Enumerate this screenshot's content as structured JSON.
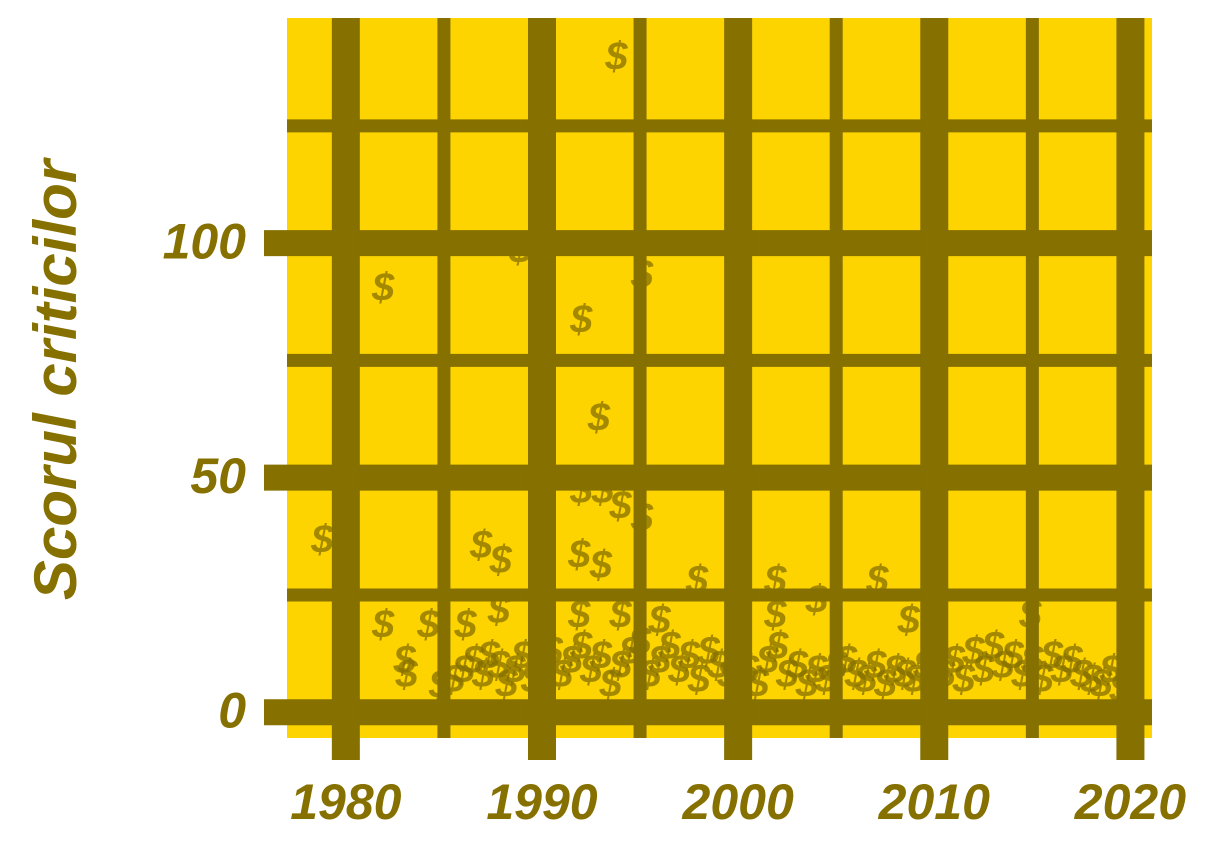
{
  "chart_data": {
    "type": "scatter",
    "y_label": "Scorul criticilor",
    "marker": "$",
    "color": "#857000",
    "background": "#fdd400",
    "grid": true,
    "xlim": [
      1977,
      2021.1
    ],
    "ylim": [
      -5.5,
      148
    ],
    "xticks": [
      1980,
      1990,
      2000,
      2010,
      2020
    ],
    "yticks": [
      0,
      50,
      100
    ],
    "xminor": [
      1985,
      1995,
      2005,
      2015
    ],
    "yminor": [
      25,
      75,
      125
    ],
    "series": [
      {
        "name": null,
        "color": "#857000",
        "x": [
          1978.8,
          1981.9,
          1988.9,
          1993.8,
          1995.1,
          1992.0,
          1992.9,
          1992.0,
          1993.1,
          1994.0,
          1995.1,
          1986.9,
          1987.9,
          1991.9,
          1993.0,
          1997.9,
          2001.9,
          2004.0,
          2007.1,
          1981.9,
          1984.2,
          1986.1,
          1987.8,
          1991.9,
          1994.0,
          1996.0,
          2001.9,
          2008.7,
          2014.9,
          1983.0,
          1983.1,
          1984.8,
          1985.5,
          1986.0,
          1986.5,
          1987.0,
          1987.3,
          1987.8,
          1988.2,
          1988.6,
          1989.0,
          1989.5,
          1990.0,
          1990.5,
          1991.0,
          1991.5,
          1992.0,
          1992.5,
          1993.0,
          1993.5,
          1994.0,
          1994.5,
          1995.0,
          1995.5,
          1996.0,
          1996.5,
          1997.0,
          1997.5,
          1998.0,
          1998.5,
          1999.0,
          1999.5,
          2000.0,
          2000.5,
          2001.0,
          2001.5,
          2002.0,
          2002.5,
          2003.0,
          2003.5,
          2004.0,
          2004.5,
          2005.0,
          2005.5,
          2006.0,
          2006.5,
          2007.0,
          2007.5,
          2008.0,
          2008.5,
          2009.0,
          2009.5,
          2010.0,
          2010.5,
          2011.0,
          2011.5,
          2012.0,
          2012.5,
          2013.0,
          2013.5,
          2014.0,
          2014.5,
          2015.0,
          2015.5,
          2016.0,
          2016.5,
          2017.0,
          2017.5,
          2018.0,
          2018.5,
          2019.0,
          2019.5
        ],
        "values": [
          36.7,
          90.4,
          98.5,
          139.7,
          93.2,
          83.6,
          62.7,
          47.3,
          47.3,
          44.0,
          41.4,
          35.6,
          32.4,
          33.5,
          31.3,
          28.1,
          28.1,
          23.9,
          28.1,
          18.6,
          18.6,
          18.6,
          21.7,
          20.7,
          20.7,
          19.6,
          20.7,
          19.6,
          20.7,
          11.0,
          8.0,
          5.8,
          7,
          9,
          11,
          8,
          12,
          10,
          6,
          9,
          12,
          7,
          10,
          13,
          8,
          11,
          14,
          9,
          12,
          6,
          10,
          13,
          15,
          8,
          11,
          14,
          9,
          12,
          7,
          13,
          10,
          8,
          12,
          9,
          6,
          11,
          14,
          8,
          10,
          6,
          9,
          7,
          10,
          11,
          8,
          7,
          10,
          6,
          9,
          8,
          7,
          10,
          6,
          8,
          11,
          7,
          13,
          9,
          14,
          10,
          12,
          8,
          11,
          7,
          12,
          9,
          11,
          8,
          7,
          6,
          9,
          5
        ]
      }
    ]
  }
}
